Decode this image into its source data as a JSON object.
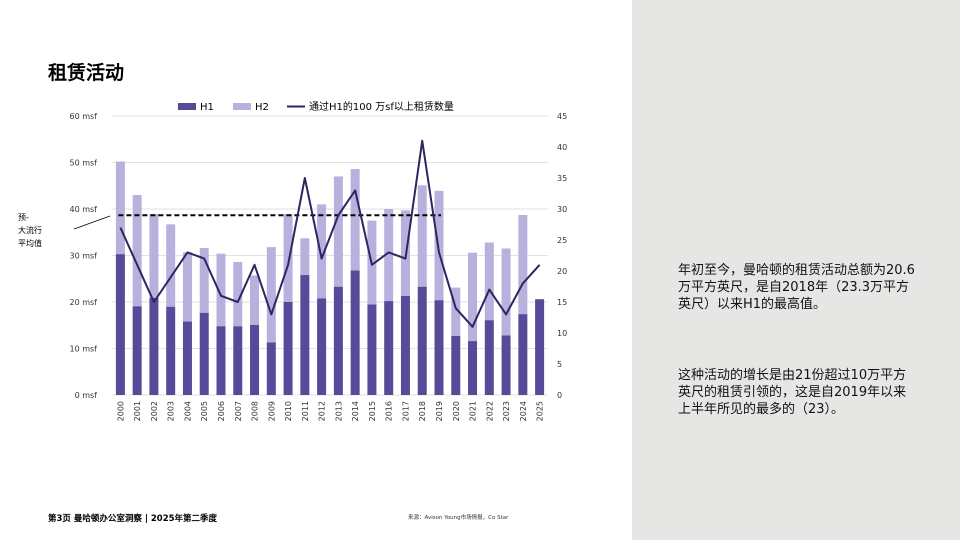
{
  "page": {
    "title": "租赁活动",
    "footer": "第3页 曼哈顿办公室洞察 | 2025年第二季度",
    "source": "来源：Avison Young市场情报，Co Star"
  },
  "side_panel": {
    "paragraph_1": "年初至今，曼哈顿的租赁活动总额为20.6万平方英尺，是自2018年（23.3万平方英尺）以来H1的最高值。",
    "paragraph_2": "这种活动的增长是由21份超过10万平方英尺的租赁引领的，这是自2019年以来上半年所见的最多的（23）。"
  },
  "chart_data": {
    "type": "bar",
    "stacked": true,
    "categories": [
      "2000",
      "2001",
      "2002",
      "2003",
      "2004",
      "2005",
      "2006",
      "2007",
      "2008",
      "2009",
      "2010",
      "2011",
      "2012",
      "2013",
      "2014",
      "2015",
      "2016",
      "2017",
      "2018",
      "2019",
      "2020",
      "2021",
      "2022",
      "2023",
      "2024",
      "2025"
    ],
    "series": [
      {
        "name": "H1",
        "color": "#574a99",
        "values": [
          30.3,
          19.1,
          20.9,
          19.0,
          15.8,
          17.7,
          14.8,
          14.8,
          15.1,
          11.3,
          20.0,
          25.8,
          20.8,
          23.3,
          26.8,
          19.5,
          20.2,
          21.3,
          23.3,
          20.4,
          12.7,
          11.6,
          16.1,
          12.8,
          17.4,
          20.6
        ]
      },
      {
        "name": "H2",
        "color": "#b8b0dd",
        "values": [
          19.9,
          23.9,
          18.0,
          17.7,
          14.9,
          13.9,
          15.6,
          13.8,
          10.6,
          20.5,
          18.9,
          7.9,
          20.2,
          23.7,
          21.8,
          18.0,
          19.8,
          18.4,
          21.8,
          23.5,
          10.4,
          19.0,
          16.7,
          18.7,
          21.3,
          0
        ]
      },
      {
        "name": "通过H1的100 万sf以上租赁数量",
        "color": "#2e2660",
        "values": [
          27,
          21,
          15,
          19,
          23,
          22,
          16,
          15,
          21,
          13,
          21,
          35,
          22,
          29,
          33,
          21,
          23,
          22,
          41,
          23,
          14,
          11,
          17,
          13,
          18,
          21
        ]
      }
    ],
    "average_line": {
      "label": "预-大流行平均值",
      "value": 29,
      "color": "#000000"
    },
    "y_left": {
      "ticks": [
        "0 msf",
        "10 msf",
        "20 msf",
        "30 msf",
        "40 msf",
        "50 msf",
        "60 msf"
      ],
      "ylim": [
        0,
        60
      ]
    },
    "y_right": {
      "ticks": [
        "0",
        "5",
        "10",
        "15",
        "20",
        "25",
        "30",
        "35",
        "40",
        "45"
      ],
      "ylim": [
        0,
        45
      ]
    },
    "legend_position": "top",
    "grid": true
  }
}
